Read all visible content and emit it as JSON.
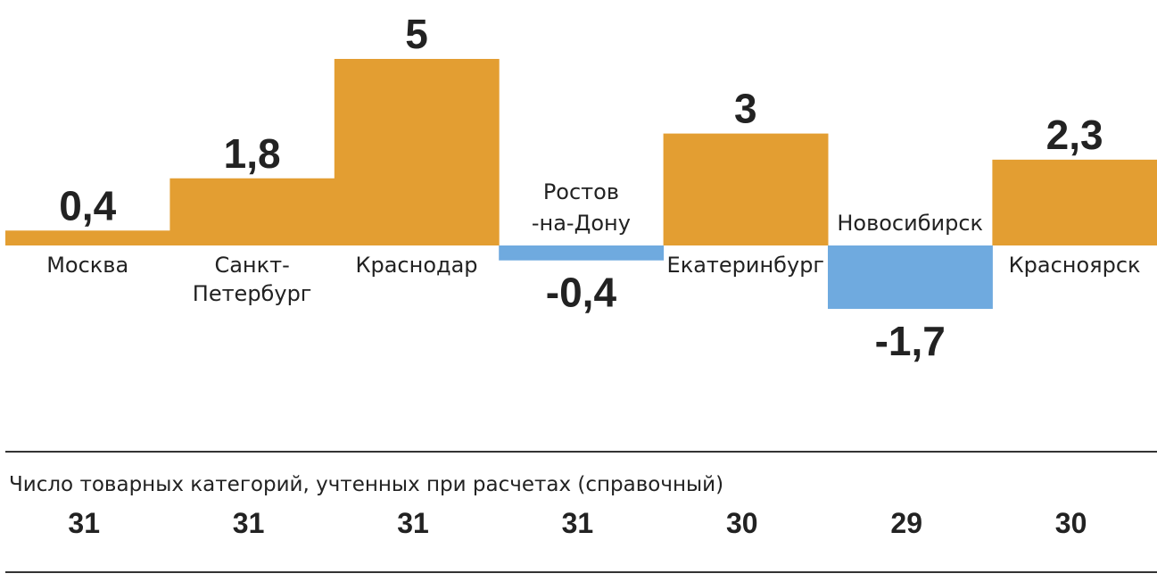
{
  "chart_data": {
    "type": "bar",
    "categories": [
      "Москва",
      "Санкт-\nПетербург",
      "Краснодар",
      "Ростов\n-на-Дону",
      "Екатеринбург",
      "Новосибирск",
      "Красноярск"
    ],
    "values": [
      0.4,
      1.8,
      5,
      -0.4,
      3,
      -1.7,
      2.3
    ],
    "value_labels": [
      "0,4",
      "1,8",
      "5",
      "-0,4",
      "3",
      "-1,7",
      "2,3"
    ],
    "colors": {
      "positive": "#E39E32",
      "negative": "#6FAADF"
    },
    "title": "",
    "xlabel": "",
    "ylabel": "",
    "grid": false
  },
  "reference": {
    "label": "Число товарных категорий, учтенных при расчетах (справочный)",
    "counts": [
      "31",
      "31",
      "31",
      "31",
      "30",
      "29",
      "30"
    ]
  }
}
